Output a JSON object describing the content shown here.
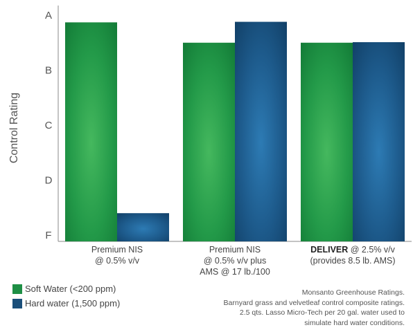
{
  "chart_data": {
    "type": "bar",
    "ylabel": "Control Rating",
    "y_ticks": [
      "A",
      "B",
      "C",
      "D",
      "F"
    ],
    "y_tick_values": [
      4,
      3,
      2,
      1,
      0
    ],
    "ylim": [
      0,
      4
    ],
    "categories": [
      {
        "bold": "",
        "lines": [
          "Premium NIS",
          "@ 0.5% v/v"
        ]
      },
      {
        "bold": "",
        "lines": [
          "Premium NIS",
          "@ 0.5% v/v plus",
          "AMS @ 17 lb./100"
        ]
      },
      {
        "bold": "DELIVER",
        "lines": [
          " @ 2.5% v/v",
          "(provides 8.5 lb. AMS)"
        ]
      }
    ],
    "series": [
      {
        "name": "Soft Water (<200 ppm)",
        "color": "#1e8f45",
        "values": [
          3.87,
          3.5,
          3.5
        ]
      },
      {
        "name": "Hard water (1,500 ppm)",
        "color": "#1a4f7a",
        "values": [
          0.4,
          3.88,
          3.51
        ]
      }
    ],
    "grid": false,
    "legend_position": "bottom-left"
  },
  "legend": {
    "soft": "Soft Water (<200 ppm)",
    "hard": "Hard water (1,500 ppm)"
  },
  "note": [
    "Monsanto Greenhouse Ratings.",
    "Barnyard grass and velvetleaf control composite ratings.",
    "2.5 qts. Lasso Micro-Tech per 20 gal. water used to",
    "simulate hard water conditions."
  ]
}
